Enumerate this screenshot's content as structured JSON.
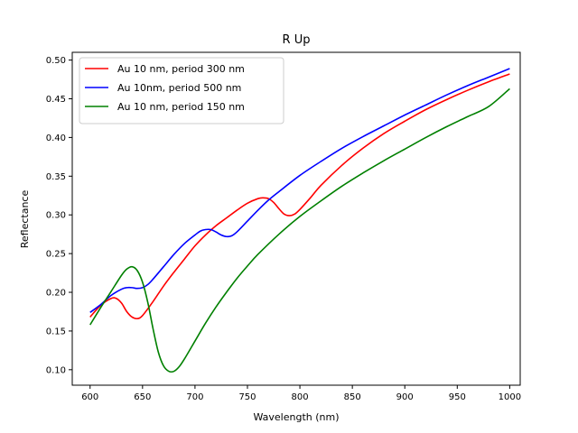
{
  "chart_data": {
    "type": "line",
    "title": "R Up",
    "xlabel": "Wavelength (nm)",
    "ylabel": "Reflectance",
    "xlim": [
      583,
      1010
    ],
    "ylim": [
      0.08,
      0.51
    ],
    "xticks": [
      600,
      650,
      700,
      750,
      800,
      850,
      900,
      950,
      1000
    ],
    "yticks": [
      0.1,
      0.15,
      0.2,
      0.25,
      0.3,
      0.35,
      0.4,
      0.45,
      0.5
    ],
    "grid": false,
    "legend_position": "upper-left",
    "series": [
      {
        "name": "Au 10 nm, period 300 nm",
        "color": "#ff0000",
        "x": [
          600,
          610,
          620,
          625,
          630,
          635,
          640,
          645,
          650,
          660,
          670,
          680,
          690,
          700,
          710,
          720,
          730,
          740,
          750,
          760,
          765,
          770,
          775,
          780,
          785,
          790,
          795,
          800,
          810,
          820,
          840,
          860,
          880,
          900,
          920,
          940,
          960,
          980,
          1000
        ],
        "y": [
          0.168,
          0.183,
          0.192,
          0.192,
          0.186,
          0.175,
          0.168,
          0.166,
          0.17,
          0.188,
          0.208,
          0.226,
          0.243,
          0.26,
          0.274,
          0.286,
          0.296,
          0.306,
          0.315,
          0.321,
          0.322,
          0.321,
          0.316,
          0.308,
          0.301,
          0.299,
          0.301,
          0.307,
          0.322,
          0.338,
          0.364,
          0.386,
          0.405,
          0.421,
          0.436,
          0.449,
          0.461,
          0.472,
          0.482
        ]
      },
      {
        "name": "Au 10nm, period 500 nm",
        "color": "#0000ff",
        "x": [
          600,
          610,
          620,
          630,
          635,
          640,
          645,
          650,
          655,
          660,
          670,
          680,
          690,
          700,
          705,
          710,
          715,
          720,
          725,
          730,
          735,
          740,
          750,
          760,
          770,
          780,
          800,
          820,
          840,
          860,
          880,
          900,
          920,
          940,
          960,
          980,
          1000
        ],
        "y": [
          0.174,
          0.184,
          0.196,
          0.204,
          0.206,
          0.206,
          0.205,
          0.206,
          0.21,
          0.217,
          0.233,
          0.249,
          0.263,
          0.274,
          0.279,
          0.281,
          0.281,
          0.278,
          0.274,
          0.272,
          0.273,
          0.278,
          0.292,
          0.306,
          0.319,
          0.33,
          0.351,
          0.369,
          0.386,
          0.401,
          0.415,
          0.429,
          0.442,
          0.455,
          0.467,
          0.478,
          0.489
        ]
      },
      {
        "name": "Au 10 nm, period 150 nm",
        "color": "#008000",
        "x": [
          600,
          610,
          620,
          630,
          635,
          640,
          645,
          650,
          655,
          660,
          665,
          670,
          675,
          680,
          685,
          690,
          700,
          710,
          720,
          730,
          740,
          750,
          760,
          780,
          800,
          820,
          840,
          860,
          880,
          900,
          920,
          940,
          960,
          980,
          1000
        ],
        "y": [
          0.158,
          0.18,
          0.201,
          0.222,
          0.23,
          0.233,
          0.228,
          0.213,
          0.187,
          0.153,
          0.123,
          0.105,
          0.098,
          0.098,
          0.104,
          0.114,
          0.137,
          0.16,
          0.181,
          0.2,
          0.218,
          0.234,
          0.249,
          0.275,
          0.298,
          0.318,
          0.337,
          0.354,
          0.37,
          0.385,
          0.4,
          0.414,
          0.427,
          0.44,
          0.463
        ]
      }
    ]
  }
}
